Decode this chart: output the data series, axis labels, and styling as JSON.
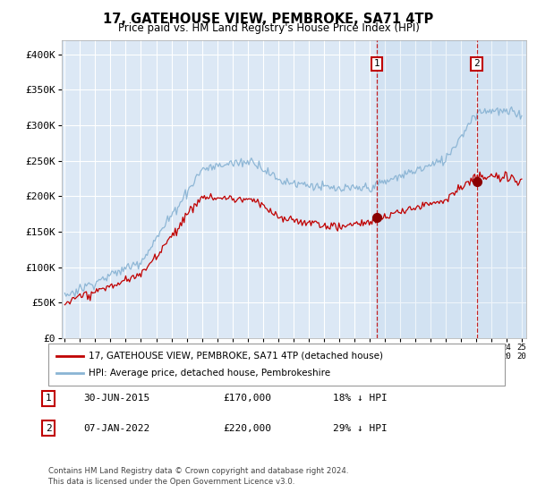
{
  "title": "17, GATEHOUSE VIEW, PEMBROKE, SA71 4TP",
  "subtitle": "Price paid vs. HM Land Registry's House Price Index (HPI)",
  "ylabel_ticks": [
    "£0",
    "£50K",
    "£100K",
    "£150K",
    "£200K",
    "£250K",
    "£300K",
    "£350K",
    "£400K"
  ],
  "ytick_values": [
    0,
    50000,
    100000,
    150000,
    200000,
    250000,
    300000,
    350000,
    400000
  ],
  "ylim": [
    0,
    420000
  ],
  "xlim_start": 1994.8,
  "xlim_end": 2025.3,
  "hpi_color": "#8ab4d4",
  "price_color": "#c00000",
  "bg_color": "#dce8f5",
  "grid_color": "#ffffff",
  "marker1_date": 2015.5,
  "marker1_price": 170000,
  "marker1_label": "30-JUN-2015",
  "marker1_amount": "£170,000",
  "marker1_pct": "18% ↓ HPI",
  "marker2_date": 2022.04,
  "marker2_price": 220000,
  "marker2_label": "07-JAN-2022",
  "marker2_amount": "£220,000",
  "marker2_pct": "29% ↓ HPI",
  "legend_line1": "17, GATEHOUSE VIEW, PEMBROKE, SA71 4TP (detached house)",
  "legend_line2": "HPI: Average price, detached house, Pembrokeshire",
  "footer1": "Contains HM Land Registry data © Crown copyright and database right 2024.",
  "footer2": "This data is licensed under the Open Government Licence v3.0."
}
